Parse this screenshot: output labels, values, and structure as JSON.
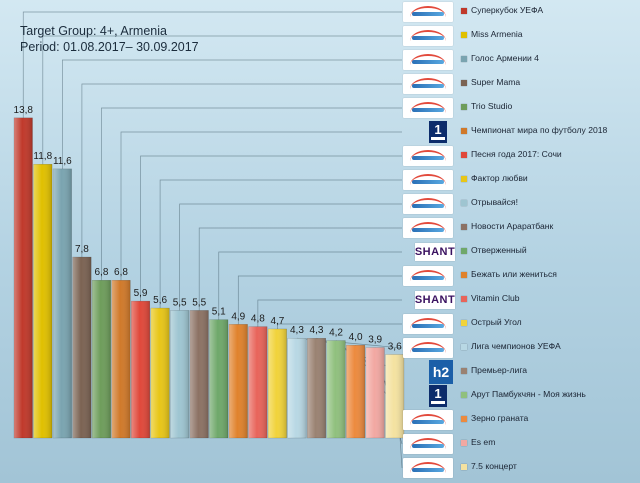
{
  "header": {
    "line1": "Target Group: 4+, Armenia",
    "line2": "Period: 01.08.2017– 30.09.2017"
  },
  "chart_data": {
    "type": "bar",
    "categories": [
      "Суперкубок УЕФА",
      "Miss Armenia",
      "Голос Армении 4",
      "Super Mama",
      "Trio Studio",
      "Чемпионат мира по футболу 2018",
      "Песня года 2017: Сочи",
      "Фактор любви",
      "Отрывайся!",
      "Новости Араратбанк",
      "Отверженный",
      "Бежать или жениться",
      "Vitamin Club",
      "Острый Угол",
      "Лига чемпионов УЕФА",
      "Премьер-лига",
      "Арут Памбукчян - Моя жизнь",
      "Зерно граната",
      "Es em",
      "7.5 концерт"
    ],
    "values": [
      13.8,
      11.8,
      11.6,
      7.8,
      6.8,
      6.8,
      5.9,
      5.6,
      5.5,
      5.5,
      5.1,
      4.9,
      4.8,
      4.7,
      4.3,
      4.3,
      4.2,
      4.0,
      3.9,
      3.6
    ],
    "value_labels": [
      "13,8",
      "11,8",
      "11,6",
      "7,8",
      "6,8",
      "6,8",
      "5,9",
      "5,6",
      "5,5",
      "5,5",
      "5,1",
      "4,9",
      "4,8",
      "4,7",
      "4,3",
      "4,3",
      "4,2",
      "4,0",
      "3,9",
      "3,6"
    ],
    "colors": [
      "#c0392b",
      "#e0c000",
      "#7aa4b0",
      "#7b6353",
      "#6e9d5b",
      "#d0792a",
      "#e0483a",
      "#e8c617",
      "#9ec5d1",
      "#8c7264",
      "#6fa86a",
      "#e0822c",
      "#e8645a",
      "#f1d33a",
      "#b8d8e4",
      "#9a8272",
      "#90c07e",
      "#ec8a3e",
      "#f2a8a2",
      "#f4e2a0"
    ],
    "channel_logos": [
      "armenia",
      "armenia",
      "armenia",
      "armenia",
      "armenia",
      "one",
      "armenia",
      "armenia",
      "armenia",
      "armenia",
      "shant",
      "armenia",
      "shant",
      "armenia",
      "armenia",
      "h2",
      "one",
      "armenia",
      "armenia",
      "armenia"
    ],
    "ylim": [
      0,
      15
    ],
    "grid": false,
    "legend_position": "right"
  }
}
